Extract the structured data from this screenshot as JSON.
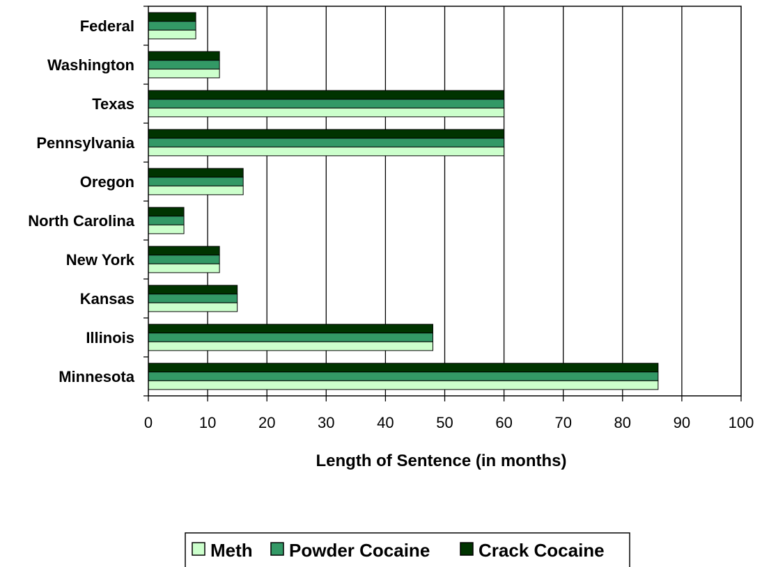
{
  "chart_data": {
    "type": "bar",
    "orientation": "horizontal",
    "categories": [
      "Federal",
      "Washington",
      "Texas",
      "Pennsylvania",
      "Oregon",
      "North Carolina",
      "New York",
      "Kansas",
      "Illinois",
      "Minnesota"
    ],
    "series": [
      {
        "name": "Meth",
        "color": "#ccffcc",
        "values": [
          8,
          12,
          60,
          60,
          16,
          6,
          12,
          15,
          48,
          86
        ]
      },
      {
        "name": "Powder Cocaine",
        "color": "#339966",
        "values": [
          8,
          12,
          60,
          60,
          16,
          6,
          12,
          15,
          48,
          86
        ]
      },
      {
        "name": "Crack Cocaine",
        "color": "#003300",
        "values": [
          8,
          12,
          60,
          60,
          16,
          6,
          12,
          15,
          48,
          86
        ]
      }
    ],
    "title": "",
    "xlabel": "Length of Sentence (in months)",
    "ylabel": "",
    "xlim": [
      0,
      100
    ],
    "xticks": [
      "0",
      "10",
      "20",
      "30",
      "40",
      "50",
      "60",
      "70",
      "80",
      "90",
      "100"
    ],
    "grid": "vertical",
    "legend_position": "bottom"
  }
}
